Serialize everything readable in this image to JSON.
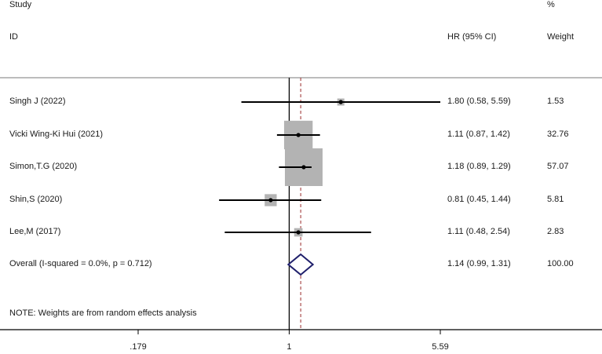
{
  "header": {
    "study_label": "Study",
    "id_label": "ID",
    "hr_label": "HR (95% CI)",
    "pct_label": "%",
    "weight_label": "Weight"
  },
  "rows": [
    {
      "study": "Singh J (2022)",
      "hr": 1.8,
      "lo": 0.58,
      "hi": 5.59,
      "ci_text": "1.80 (0.58, 5.59)",
      "weight": "1.53"
    },
    {
      "study": "Vicki Wing-Ki Hui (2021)",
      "hr": 1.11,
      "lo": 0.87,
      "hi": 1.42,
      "ci_text": "1.11 (0.87, 1.42)",
      "weight": "32.76"
    },
    {
      "study": "Simon,T.G (2020)",
      "hr": 1.18,
      "lo": 0.89,
      "hi": 1.29,
      "ci_text": "1.18 (0.89, 1.29)",
      "weight": "57.07"
    },
    {
      "study": "Shin,S (2020)",
      "hr": 0.81,
      "lo": 0.45,
      "hi": 1.44,
      "ci_text": "0.81 (0.45, 1.44)",
      "weight": "5.81"
    },
    {
      "study": "Lee,M (2017)",
      "hr": 1.11,
      "lo": 0.48,
      "hi": 2.54,
      "ci_text": "1.11 (0.48, 2.54)",
      "weight": "2.83"
    }
  ],
  "overall": {
    "label": "Overall  (I-squared = 0.0%, p = 0.712)",
    "hr": 1.14,
    "lo": 0.99,
    "hi": 1.31,
    "ci_text": "1.14 (0.99, 1.31)",
    "weight": "100.00"
  },
  "note": "NOTE: Weights are from random effects analysis",
  "chart_data": {
    "type": "scatter",
    "x_scale": "log",
    "x_ticks": [
      0.179,
      1,
      5.59
    ],
    "x_tick_labels": [
      ".179",
      "1",
      "5.59"
    ],
    "null_line": 1,
    "overall_line": 1.14,
    "xlim": [
      0.179,
      5.59
    ]
  },
  "colors": {
    "ci_line": "#000000",
    "weight_box": "#b3b3b3",
    "diamond": "#1f1f6b",
    "overall_line": "#9a2a2a"
  }
}
